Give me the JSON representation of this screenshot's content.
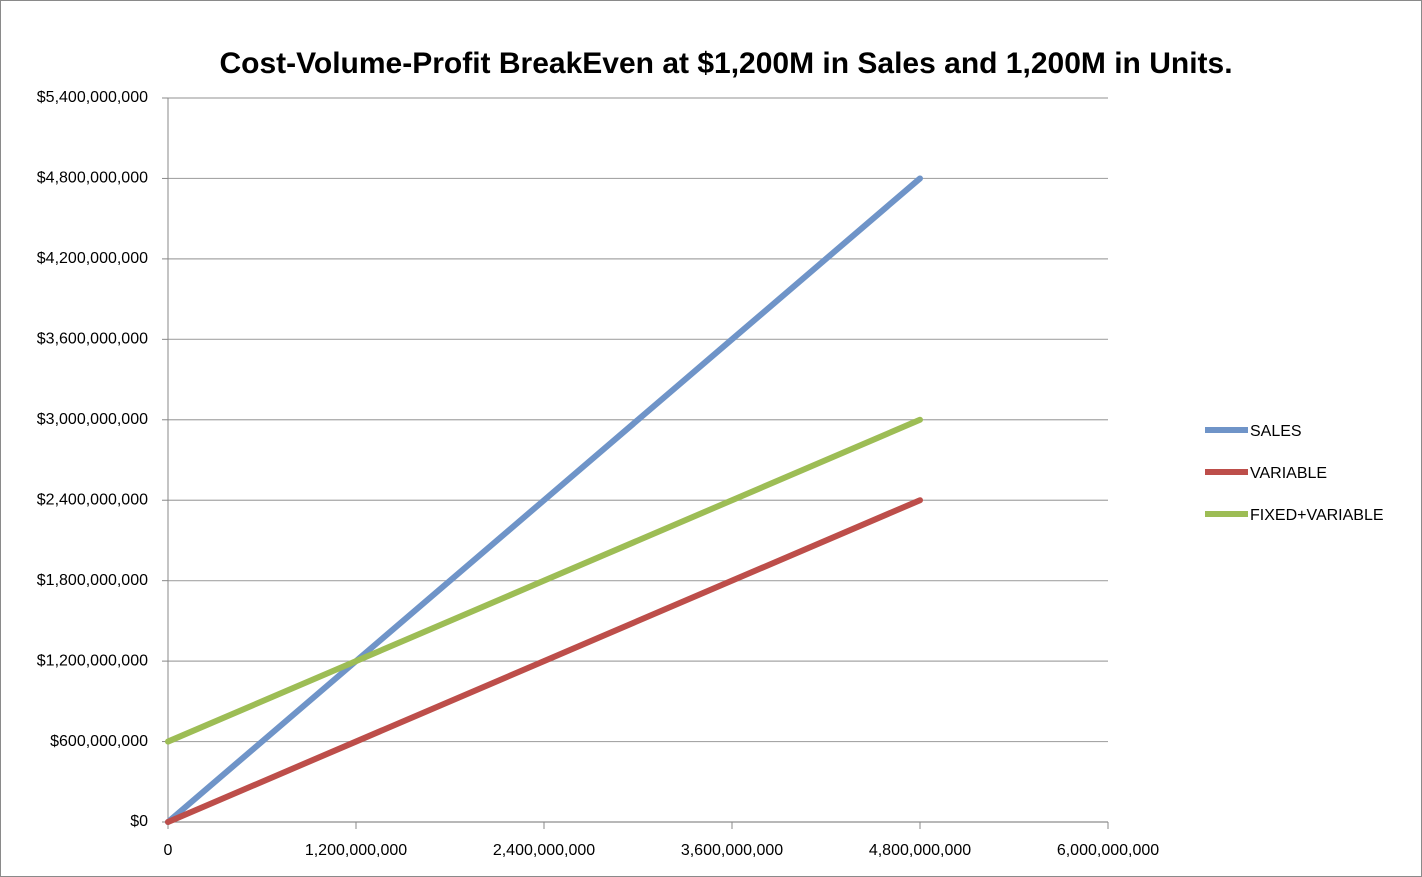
{
  "chart_data": {
    "type": "line",
    "title": "Cost-Volume-Profit BreakEven at $1,200M in Sales and 1,200M in Units.",
    "x": [
      0,
      1200000000,
      2400000000,
      3600000000,
      4800000000
    ],
    "series": [
      {
        "name": "SALES",
        "color": "#6f94c8",
        "values": [
          0,
          1200000000,
          2400000000,
          3600000000,
          4800000000
        ]
      },
      {
        "name": "VARIABLE",
        "color": "#bd4e4a",
        "values": [
          0,
          600000000,
          1200000000,
          1800000000,
          2400000000
        ]
      },
      {
        "name": "FIXED+VARIABLE",
        "color": "#9dbd55",
        "values": [
          600000000,
          1200000000,
          1800000000,
          2400000000,
          3000000000
        ]
      }
    ],
    "xlim": [
      0,
      6000000000
    ],
    "xticks": [
      0,
      {
        "value": 1200000000,
        "label": "1,200,000,000"
      },
      {
        "value": 2400000000,
        "label": "2,400,000,000"
      },
      {
        "value": 3600000000,
        "label": "3,600,000,000"
      },
      {
        "value": 4800000000,
        "label": "4,800,000,000"
      },
      {
        "value": 6000000000,
        "label": "6,000,000,000"
      }
    ],
    "ylim": [
      0,
      5400000000
    ],
    "yticks": [
      {
        "value": 0,
        "label": "$0"
      },
      {
        "value": 600000000,
        "label": "$600,000,000"
      },
      {
        "value": 1200000000,
        "label": "$1,200,000,000"
      },
      {
        "value": 1800000000,
        "label": "$1,800,000,000"
      },
      {
        "value": 2400000000,
        "label": "$2,400,000,000"
      },
      {
        "value": 3000000000,
        "label": "$3,000,000,000"
      },
      {
        "value": 3600000000,
        "label": "$3,600,000,000"
      },
      {
        "value": 4200000000,
        "label": "$4,200,000,000"
      },
      {
        "value": 4800000000,
        "label": "$4,800,000,000"
      },
      {
        "value": 5400000000,
        "label": "$5,400,000,000"
      }
    ],
    "grid": true,
    "legend": "right"
  }
}
